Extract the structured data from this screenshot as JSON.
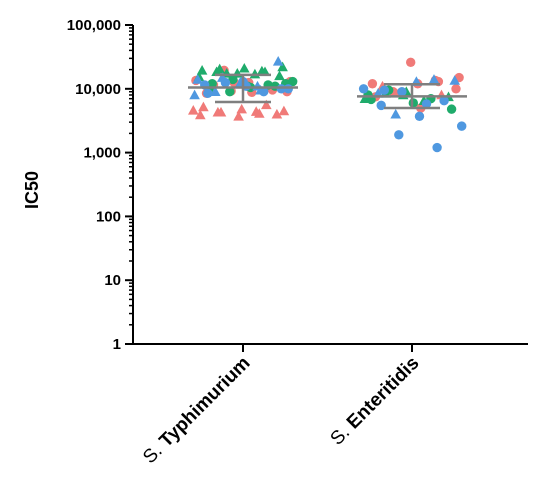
{
  "chart_data": {
    "type": "scatter",
    "title": "",
    "xlabel": "",
    "ylabel": "IC50",
    "yscale": "log",
    "ylim": [
      1,
      100000
    ],
    "yticks": [
      1,
      10,
      100,
      1000,
      10000,
      100000
    ],
    "ytick_labels": [
      "1",
      "10",
      "100",
      "1,000",
      "10,000",
      "100,000"
    ],
    "grid": false,
    "categories": [
      {
        "prefix": "S. ",
        "name": "Typhimurium"
      },
      {
        "prefix": "S. ",
        "name": "Enteritidis"
      }
    ],
    "colors": {
      "red": "#f07a78",
      "green": "#1fab6b",
      "blue": "#4f98e0",
      "summary": "#7f7f7f"
    },
    "series": [
      {
        "category": "Typhimurium",
        "mean": 10500,
        "sd_low": 6200,
        "sd_high": 16500,
        "points": [
          {
            "y": 4600,
            "color": "red",
            "marker": "triangle"
          },
          {
            "y": 4400,
            "color": "red",
            "marker": "triangle"
          },
          {
            "y": 4300,
            "color": "red",
            "marker": "triangle"
          },
          {
            "y": 4000,
            "color": "red",
            "marker": "triangle"
          },
          {
            "y": 3700,
            "color": "red",
            "marker": "triangle"
          },
          {
            "y": 3900,
            "color": "red",
            "marker": "triangle"
          },
          {
            "y": 4100,
            "color": "red",
            "marker": "triangle"
          },
          {
            "y": 4300,
            "color": "red",
            "marker": "triangle"
          },
          {
            "y": 4500,
            "color": "red",
            "marker": "triangle"
          },
          {
            "y": 4800,
            "color": "red",
            "marker": "triangle"
          },
          {
            "y": 5200,
            "color": "red",
            "marker": "triangle"
          },
          {
            "y": 5600,
            "color": "red",
            "marker": "triangle"
          },
          {
            "y": 19500,
            "color": "red",
            "marker": "circle"
          },
          {
            "y": 9000,
            "color": "red",
            "marker": "circle"
          },
          {
            "y": 12500,
            "color": "red",
            "marker": "circle"
          },
          {
            "y": 8500,
            "color": "red",
            "marker": "circle"
          },
          {
            "y": 10500,
            "color": "red",
            "marker": "circle"
          },
          {
            "y": 9200,
            "color": "red",
            "marker": "circle"
          },
          {
            "y": 13000,
            "color": "red",
            "marker": "circle"
          },
          {
            "y": 8800,
            "color": "red",
            "marker": "circle"
          },
          {
            "y": 11500,
            "color": "red",
            "marker": "circle"
          },
          {
            "y": 9600,
            "color": "red",
            "marker": "circle"
          },
          {
            "y": 12500,
            "color": "red",
            "marker": "circle"
          },
          {
            "y": 13500,
            "color": "red",
            "marker": "circle"
          },
          {
            "y": 17000,
            "color": "green",
            "marker": "triangle"
          },
          {
            "y": 18500,
            "color": "green",
            "marker": "triangle"
          },
          {
            "y": 16000,
            "color": "green",
            "marker": "triangle"
          },
          {
            "y": 17500,
            "color": "green",
            "marker": "triangle"
          },
          {
            "y": 15500,
            "color": "green",
            "marker": "triangle"
          },
          {
            "y": 19000,
            "color": "green",
            "marker": "triangle"
          },
          {
            "y": 20500,
            "color": "green",
            "marker": "triangle"
          },
          {
            "y": 22000,
            "color": "green",
            "marker": "triangle"
          },
          {
            "y": 21000,
            "color": "green",
            "marker": "triangle"
          },
          {
            "y": 19500,
            "color": "green",
            "marker": "triangle"
          },
          {
            "y": 18500,
            "color": "green",
            "marker": "triangle"
          },
          {
            "y": 17500,
            "color": "green",
            "marker": "triangle"
          },
          {
            "y": 12000,
            "color": "green",
            "marker": "circle"
          },
          {
            "y": 11000,
            "color": "green",
            "marker": "circle"
          },
          {
            "y": 10000,
            "color": "green",
            "marker": "circle"
          },
          {
            "y": 11500,
            "color": "green",
            "marker": "circle"
          },
          {
            "y": 9000,
            "color": "green",
            "marker": "circle"
          },
          {
            "y": 13000,
            "color": "green",
            "marker": "circle"
          },
          {
            "y": 10500,
            "color": "green",
            "marker": "circle"
          },
          {
            "y": 12000,
            "color": "green",
            "marker": "circle"
          },
          {
            "y": 11000,
            "color": "green",
            "marker": "circle"
          },
          {
            "y": 14000,
            "color": "green",
            "marker": "circle"
          },
          {
            "y": 8000,
            "color": "blue",
            "marker": "triangle"
          },
          {
            "y": 11000,
            "color": "blue",
            "marker": "triangle"
          },
          {
            "y": 9000,
            "color": "blue",
            "marker": "triangle"
          },
          {
            "y": 27000,
            "color": "blue",
            "marker": "triangle"
          },
          {
            "y": 12000,
            "color": "blue",
            "marker": "triangle"
          },
          {
            "y": 14000,
            "color": "blue",
            "marker": "triangle"
          },
          {
            "y": 9500,
            "color": "blue",
            "marker": "triangle"
          },
          {
            "y": 15000,
            "color": "blue",
            "marker": "triangle"
          },
          {
            "y": 10000,
            "color": "blue",
            "marker": "circle"
          },
          {
            "y": 13000,
            "color": "blue",
            "marker": "circle"
          },
          {
            "y": 11500,
            "color": "blue",
            "marker": "circle"
          },
          {
            "y": 9000,
            "color": "blue",
            "marker": "circle"
          },
          {
            "y": 12500,
            "color": "blue",
            "marker": "circle"
          },
          {
            "y": 10000,
            "color": "blue",
            "marker": "circle"
          },
          {
            "y": 11000,
            "color": "blue",
            "marker": "circle"
          },
          {
            "y": 8500,
            "color": "blue",
            "marker": "circle"
          }
        ]
      },
      {
        "category": "Enteritidis",
        "mean": 7600,
        "sd_low": 5000,
        "sd_high": 11800,
        "points": [
          {
            "y": 26000,
            "color": "red",
            "marker": "circle"
          },
          {
            "y": 12000,
            "color": "red",
            "marker": "circle"
          },
          {
            "y": 13500,
            "color": "red",
            "marker": "circle"
          },
          {
            "y": 9000,
            "color": "red",
            "marker": "circle"
          },
          {
            "y": 10000,
            "color": "red",
            "marker": "circle"
          },
          {
            "y": 12000,
            "color": "red",
            "marker": "circle"
          },
          {
            "y": 7500,
            "color": "red",
            "marker": "circle"
          },
          {
            "y": 13000,
            "color": "red",
            "marker": "circle"
          },
          {
            "y": 8500,
            "color": "red",
            "marker": "circle"
          },
          {
            "y": 15000,
            "color": "red",
            "marker": "circle"
          },
          {
            "y": 5000,
            "color": "red",
            "marker": "circle"
          },
          {
            "y": 11000,
            "color": "red",
            "marker": "triangle"
          },
          {
            "y": 8000,
            "color": "red",
            "marker": "triangle"
          },
          {
            "y": 8000,
            "color": "green",
            "marker": "triangle"
          },
          {
            "y": 7000,
            "color": "green",
            "marker": "triangle"
          },
          {
            "y": 6500,
            "color": "green",
            "marker": "triangle"
          },
          {
            "y": 8500,
            "color": "green",
            "marker": "triangle"
          },
          {
            "y": 7500,
            "color": "green",
            "marker": "triangle"
          },
          {
            "y": 9000,
            "color": "green",
            "marker": "triangle"
          },
          {
            "y": 8000,
            "color": "green",
            "marker": "circle"
          },
          {
            "y": 7000,
            "color": "green",
            "marker": "circle"
          },
          {
            "y": 9500,
            "color": "green",
            "marker": "circle"
          },
          {
            "y": 4800,
            "color": "green",
            "marker": "circle"
          },
          {
            "y": 6000,
            "color": "green",
            "marker": "circle"
          },
          {
            "y": 6800,
            "color": "green",
            "marker": "circle"
          },
          {
            "y": 14000,
            "color": "blue",
            "marker": "triangle"
          },
          {
            "y": 4000,
            "color": "blue",
            "marker": "triangle"
          },
          {
            "y": 13500,
            "color": "blue",
            "marker": "triangle"
          },
          {
            "y": 13000,
            "color": "blue",
            "marker": "triangle"
          },
          {
            "y": 8500,
            "color": "blue",
            "marker": "triangle"
          },
          {
            "y": 1200,
            "color": "blue",
            "marker": "circle"
          },
          {
            "y": 1900,
            "color": "blue",
            "marker": "circle"
          },
          {
            "y": 2600,
            "color": "blue",
            "marker": "circle"
          },
          {
            "y": 3700,
            "color": "blue",
            "marker": "circle"
          },
          {
            "y": 5500,
            "color": "blue",
            "marker": "circle"
          },
          {
            "y": 6500,
            "color": "blue",
            "marker": "circle"
          },
          {
            "y": 9000,
            "color": "blue",
            "marker": "circle"
          },
          {
            "y": 10000,
            "color": "blue",
            "marker": "circle"
          },
          {
            "y": 5800,
            "color": "blue",
            "marker": "circle"
          },
          {
            "y": 9500,
            "color": "blue",
            "marker": "circle"
          }
        ]
      }
    ]
  }
}
